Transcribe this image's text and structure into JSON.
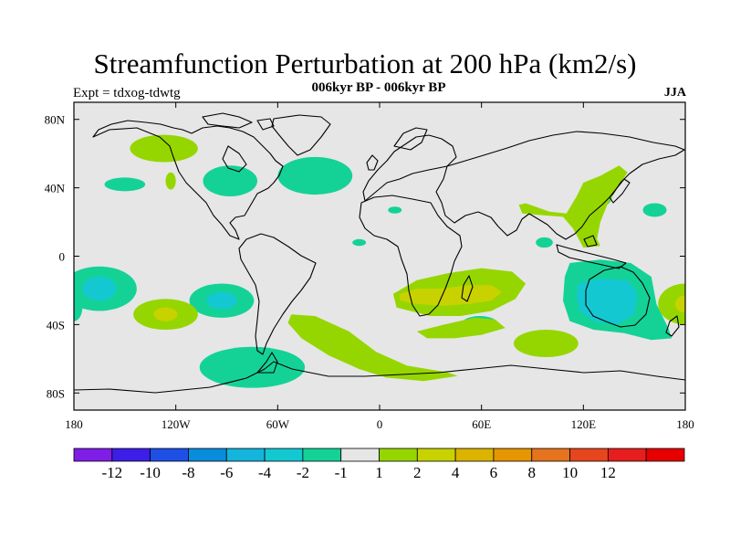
{
  "header": {
    "title": "Streamfunction Perturbation at 200 hPa (km2/s)",
    "subtitle": "006kyr BP - 006kyr BP",
    "left_label": "Expt = tdxog-tdwtg",
    "right_label": "JJA"
  },
  "map": {
    "projection": "cylindrical-equidistant",
    "lon_range": [
      -180,
      180
    ],
    "lat_range": [
      -90,
      90
    ],
    "background_color": "#e6e6e6",
    "lon_ticks": [
      {
        "value": -180,
        "label": "180"
      },
      {
        "value": -120,
        "label": "120W"
      },
      {
        "value": -60,
        "label": "60W"
      },
      {
        "value": 0,
        "label": "0"
      },
      {
        "value": 60,
        "label": "60E"
      },
      {
        "value": 120,
        "label": "120E"
      },
      {
        "value": 180,
        "label": "180"
      }
    ],
    "lat_ticks": [
      {
        "value": 80,
        "label": "80N"
      },
      {
        "value": 40,
        "label": "40N"
      },
      {
        "value": 0,
        "label": "0"
      },
      {
        "value": -40,
        "label": "40S"
      },
      {
        "value": -80,
        "label": "80S"
      }
    ],
    "anomalies": [
      {
        "lon": -127,
        "lat": 63,
        "rx": 20,
        "ry": 8,
        "level": 1
      },
      {
        "lon": -123,
        "lat": 44,
        "rx": 3,
        "ry": 5,
        "level": 1
      },
      {
        "lon": -88,
        "lat": 44,
        "rx": 16,
        "ry": 9,
        "level": -1
      },
      {
        "lon": -150,
        "lat": 42,
        "rx": 12,
        "ry": 4,
        "level": -1
      },
      {
        "lon": -38,
        "lat": 47,
        "rx": 22,
        "ry": 11,
        "level": -1
      },
      {
        "lon": 9,
        "lat": 27,
        "rx": 4,
        "ry": 2,
        "level": -1
      },
      {
        "lon": -12,
        "lat": 8,
        "rx": 4,
        "ry": 2,
        "level": -1
      },
      {
        "lon": -165,
        "lat": -19,
        "rx": 22,
        "ry": 13,
        "level": -1
      },
      {
        "lon": -165,
        "lat": -19,
        "rx": 10,
        "ry": 7,
        "level": -2
      },
      {
        "lon": -180,
        "lat": -30,
        "rx": 5,
        "ry": 8,
        "level": -1
      },
      {
        "lon": -93,
        "lat": -26,
        "rx": 19,
        "ry": 10,
        "level": -1
      },
      {
        "lon": -93,
        "lat": -26,
        "rx": 9,
        "ry": 5,
        "level": -2
      },
      {
        "lon": -126,
        "lat": -34,
        "rx": 19,
        "ry": 9,
        "level": 1
      },
      {
        "lon": -126,
        "lat": -34,
        "rx": 7,
        "ry": 4,
        "level": 2
      },
      {
        "lon": -75,
        "lat": -65,
        "rx": 31,
        "ry": 12,
        "level": -1
      },
      {
        "lon": 59,
        "lat": -40,
        "rx": 11,
        "ry": 5,
        "level": -1
      },
      {
        "lon": 98,
        "lat": -51,
        "rx": 19,
        "ry": 8,
        "level": 1
      },
      {
        "lon": 97,
        "lat": 8,
        "rx": 5,
        "ry": 3,
        "level": -1
      },
      {
        "lon": 162,
        "lat": 27,
        "rx": 7,
        "ry": 4,
        "level": -1
      },
      {
        "lon": 180,
        "lat": -28,
        "rx": 16,
        "ry": 12,
        "level": 1
      },
      {
        "lon": 180,
        "lat": -28,
        "rx": 6,
        "ry": 5,
        "level": 2
      }
    ],
    "anomaly_paths": [
      {
        "level": 1,
        "points": [
          [
            86,
            31
          ],
          [
            100,
            26
          ],
          [
            110,
            25
          ],
          [
            116,
            35
          ],
          [
            120,
            43
          ],
          [
            130,
            47
          ],
          [
            141,
            53
          ],
          [
            146,
            49
          ],
          [
            140,
            40
          ],
          [
            134,
            30
          ],
          [
            130,
            20
          ],
          [
            128,
            10
          ],
          [
            130,
            6
          ],
          [
            120,
            5
          ],
          [
            114,
            16
          ],
          [
            108,
            23
          ],
          [
            96,
            24
          ],
          [
            84,
            25
          ],
          [
            82,
            30
          ]
        ]
      },
      {
        "level": -1,
        "points": [
          [
            120,
            10
          ],
          [
            124,
            20
          ],
          [
            126,
            30
          ],
          [
            127,
            40
          ],
          [
            133,
            45
          ],
          [
            139,
            40
          ],
          [
            136,
            32
          ],
          [
            130,
            26
          ],
          [
            126,
            14
          ],
          [
            124,
            8
          ]
        ]
      },
      {
        "level": 1,
        "points": [
          [
            8,
            -22
          ],
          [
            22,
            -14
          ],
          [
            40,
            -10
          ],
          [
            60,
            -7
          ],
          [
            78,
            -9
          ],
          [
            86,
            -16
          ],
          [
            80,
            -25
          ],
          [
            66,
            -32
          ],
          [
            48,
            -35
          ],
          [
            30,
            -35
          ],
          [
            10,
            -30
          ]
        ]
      },
      {
        "level": 2,
        "points": [
          [
            12,
            -22
          ],
          [
            22,
            -19
          ],
          [
            36,
            -19
          ],
          [
            52,
            -17
          ],
          [
            66,
            -17
          ],
          [
            72,
            -21
          ],
          [
            66,
            -26
          ],
          [
            52,
            -28
          ],
          [
            38,
            -29
          ],
          [
            22,
            -28
          ],
          [
            12,
            -26
          ]
        ]
      },
      {
        "level": -1,
        "points": [
          [
            112,
            -4
          ],
          [
            130,
            -2
          ],
          [
            148,
            -4
          ],
          [
            160,
            -12
          ],
          [
            163,
            -28
          ],
          [
            170,
            -42
          ],
          [
            172,
            -48
          ],
          [
            160,
            -49
          ],
          [
            144,
            -45
          ],
          [
            126,
            -43
          ],
          [
            112,
            -38
          ],
          [
            108,
            -26
          ],
          [
            109,
            -12
          ]
        ]
      },
      {
        "level": -2,
        "points": [
          [
            117,
            -16
          ],
          [
            130,
            -13
          ],
          [
            146,
            -14
          ],
          [
            152,
            -22
          ],
          [
            150,
            -34
          ],
          [
            140,
            -40
          ],
          [
            126,
            -38
          ],
          [
            118,
            -32
          ],
          [
            116,
            -24
          ]
        ]
      },
      {
        "level": 1,
        "points": [
          [
            -52,
            -34
          ],
          [
            -38,
            -35
          ],
          [
            -18,
            -44
          ],
          [
            -2,
            -56
          ],
          [
            16,
            -64
          ],
          [
            40,
            -68
          ],
          [
            46,
            -70
          ],
          [
            26,
            -73
          ],
          [
            4,
            -71
          ],
          [
            -12,
            -66
          ],
          [
            -30,
            -58
          ],
          [
            -46,
            -48
          ],
          [
            -54,
            -39
          ]
        ]
      },
      {
        "level": 1,
        "points": [
          [
            22,
            -44
          ],
          [
            38,
            -40
          ],
          [
            56,
            -36
          ],
          [
            68,
            -37
          ],
          [
            74,
            -42
          ],
          [
            60,
            -46
          ],
          [
            44,
            -48
          ],
          [
            28,
            -48
          ]
        ]
      }
    ]
  },
  "colorbar": {
    "colors": [
      "#7e1ee6",
      "#3c1ee6",
      "#1e50e6",
      "#0a8cdc",
      "#14b4dc",
      "#14c8d2",
      "#14d296",
      "#e6e6e6",
      "#96d600",
      "#c8d200",
      "#dcb400",
      "#e69600",
      "#e6731e",
      "#e6461e",
      "#e61e1e",
      "#e60000"
    ],
    "labels": [
      "-12",
      "-10",
      "-8",
      "-6",
      "-4",
      "-2",
      "-1",
      "1",
      "2",
      "4",
      "6",
      "8",
      "10",
      "12"
    ]
  },
  "legend_levels": {
    "-2": "#14c8d2",
    "-1": "#14d296",
    "1": "#96d600",
    "2": "#c8d200"
  }
}
